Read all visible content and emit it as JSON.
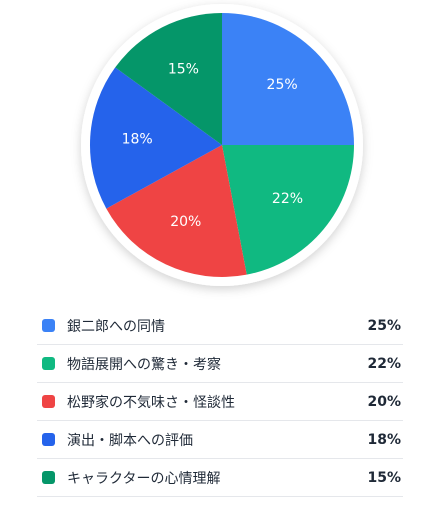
{
  "chart_data": {
    "type": "pie",
    "categories": [
      "銀二郎への同情",
      "物語展開への驚き・考察",
      "松野家の不気味さ・怪談性",
      "演出・脚本への評価",
      "キャラクターの心情理解"
    ],
    "values": [
      25,
      22,
      20,
      18,
      15
    ],
    "value_labels": [
      "25%",
      "22%",
      "20%",
      "18%",
      "15%"
    ],
    "colors": [
      "#3b82f6",
      "#10b981",
      "#ef4444",
      "#2563eb",
      "#059669"
    ],
    "legend_position": "bottom"
  }
}
